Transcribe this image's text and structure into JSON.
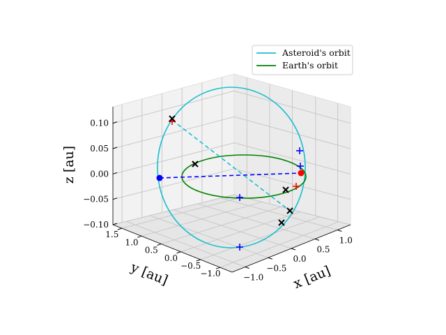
{
  "chart_data": {
    "type": "3d-line",
    "title": "",
    "axes": {
      "x": {
        "label": "x [au]",
        "lim": [
          -1.3,
          1.3
        ],
        "ticks": [
          "−1.0",
          "−0.5",
          "0.0",
          "0.5",
          "1.0"
        ]
      },
      "y": {
        "label": "y [au]",
        "lim": [
          -1.3,
          1.7
        ],
        "ticks": [
          "−1.0",
          "−0.5",
          "0.0",
          "0.5",
          "1.0",
          "1.5"
        ]
      },
      "z": {
        "label": "z [au]",
        "lim": [
          -0.1,
          0.13
        ],
        "ticks": [
          "−0.10",
          "−0.05",
          "0.00",
          "0.05",
          "0.10"
        ]
      }
    },
    "series": [
      {
        "name": "Asteroid's orbit",
        "color": "#17becf",
        "style": "solid",
        "description": "ellipse through sun, tilted strongly out of the ecliptic"
      },
      {
        "name": "Earth's orbit",
        "color": "#008000",
        "style": "solid",
        "description": "near-circular orbit of radius 1 au in z=0 plane"
      }
    ],
    "markers": [
      {
        "label": "Sun",
        "symbol": "circle",
        "color": "#ff0000",
        "x": 0.0,
        "y": 0.0,
        "z": 0.0
      },
      {
        "label": "asteroid position",
        "symbol": "circle",
        "color": "#0000ff",
        "x": 0.1,
        "y": 1.5,
        "z": 0.0
      },
      {
        "label": "asteroid orbit point",
        "symbol": "plus",
        "color": "#0000ff",
        "x": -0.05,
        "y": 0.0,
        "z": 0.045
      },
      {
        "label": "asteroid orbit point",
        "symbol": "plus",
        "color": "#0000ff",
        "x": 0.0,
        "y": 0.0,
        "z": 0.005
      },
      {
        "label": "asteroid orbit point",
        "symbol": "plus",
        "color": "#0000ff",
        "x": 0.0,
        "y": 0.9,
        "z": -0.06
      },
      {
        "label": "asteroid orbit point",
        "symbol": "plus",
        "color": "#0000ff",
        "x": 1.0,
        "y": 0.4,
        "z": -0.1
      },
      {
        "label": "asteroid orbit point",
        "symbol": "plus",
        "color": "#ff0000",
        "x": -0.2,
        "y": -0.1,
        "z": 0.0
      },
      {
        "label": "asteroid orbit point",
        "symbol": "plus",
        "color": "#ff0000",
        "x": -1.0,
        "y": 1.0,
        "z": 0.12
      },
      {
        "label": "Earth position",
        "symbol": "x",
        "color": "#000000",
        "x": -1.0,
        "y": 1.0,
        "z": 0.12
      },
      {
        "label": "Earth position",
        "symbol": "x",
        "color": "#000000",
        "x": -0.6,
        "y": 1.3,
        "z": 0.0
      },
      {
        "label": "Earth position",
        "symbol": "x",
        "color": "#000000",
        "x": 0.0,
        "y": -0.3,
        "z": 0.0
      },
      {
        "label": "Earth position",
        "symbol": "x",
        "color": "#000000",
        "x": 0.7,
        "y": -0.4,
        "z": 0.0
      },
      {
        "label": "Earth position",
        "symbol": "x",
        "color": "#000000",
        "x": 1.0,
        "y": -0.1,
        "z": 0.0
      }
    ],
    "connectors": [
      {
        "from": "asteroid orbit top",
        "to": "Sun-side point",
        "color": "#17becf",
        "style": "dashed"
      },
      {
        "from": "asteroid position",
        "to": "Sun",
        "color": "#0000ff",
        "style": "dashed"
      }
    ],
    "legend_position": "top-right"
  }
}
